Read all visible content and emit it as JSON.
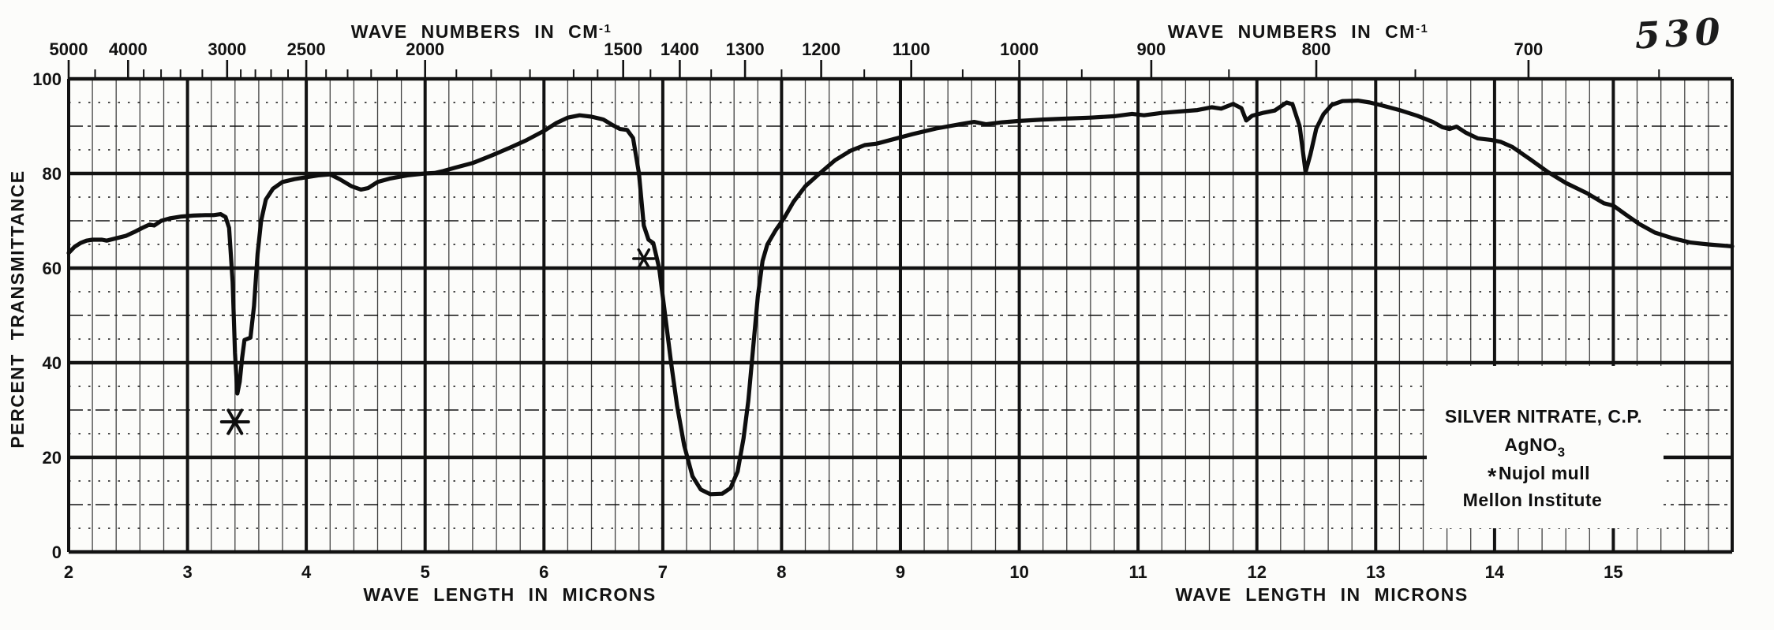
{
  "colors": {
    "ink": "#121212",
    "curve": "#0e0e0e",
    "paper": "#fcfcfa"
  },
  "header": {
    "wavenumber_axis_title": {
      "text": "WAVE NUMBERS IN CM",
      "sup": "-1"
    },
    "handwritten_number": "530"
  },
  "y_axis": {
    "title": "PERCENT TRANSMITTANCE"
  },
  "x_axis": {
    "title": "WAVE LENGTH IN MICRONS"
  },
  "annotation": {
    "line1": "SILVER NITRATE,  C.P.",
    "formula": {
      "text": "AgNO",
      "sub": "3"
    },
    "mull_marker": "*",
    "mull_label": "Nujol mull",
    "institute": "Mellon Institute"
  },
  "chart_data": {
    "type": "line",
    "title": "SILVER NITRATE, C.P. — AgNO3 — Nujol mull — Mellon Institute",
    "xlabel": "WAVE LENGTH IN MICRONS",
    "x2label": "WAVE NUMBERS IN CM-1",
    "ylabel": "PERCENT TRANSMITTANCE",
    "xlim": [
      2,
      16
    ],
    "ylim": [
      0,
      100
    ],
    "grid": "on",
    "x_ticks_microns": [
      2,
      3,
      4,
      5,
      6,
      7,
      8,
      9,
      10,
      11,
      12,
      13,
      14,
      15
    ],
    "y_ticks": [
      0,
      20,
      40,
      60,
      80,
      100
    ],
    "top_axis": {
      "labeled": [
        5000,
        4000,
        3000,
        2500,
        2000,
        1500,
        1400,
        1300,
        1200,
        1100,
        1000,
        900,
        800,
        700
      ],
      "minor": [
        4500,
        3800,
        3600,
        3400,
        3200,
        2900,
        2800,
        2700,
        2600,
        2400,
        2300,
        2200,
        2100,
        1900,
        1800,
        1700,
        1600,
        1550,
        1450,
        1350,
        1250,
        1150,
        1050,
        950,
        850,
        750,
        650
      ]
    },
    "markers": [
      {
        "symbol": "*",
        "mu": 3.4,
        "t": 27.5,
        "size": 17,
        "stroke": 4
      },
      {
        "symbol": "*",
        "mu": 6.84,
        "t": 62.0,
        "size": 13,
        "stroke": 3.5
      }
    ],
    "series": [
      {
        "name": "percent transmittance",
        "points": [
          [
            2.0,
            63.2
          ],
          [
            2.05,
            64.5
          ],
          [
            2.1,
            65.3
          ],
          [
            2.15,
            65.8
          ],
          [
            2.2,
            66.0
          ],
          [
            2.28,
            66.0
          ],
          [
            2.32,
            65.8
          ],
          [
            2.4,
            66.3
          ],
          [
            2.48,
            66.8
          ],
          [
            2.55,
            67.6
          ],
          [
            2.62,
            68.5
          ],
          [
            2.68,
            69.2
          ],
          [
            2.72,
            69.0
          ],
          [
            2.78,
            70.0
          ],
          [
            2.85,
            70.5
          ],
          [
            2.95,
            70.9
          ],
          [
            3.05,
            71.1
          ],
          [
            3.15,
            71.2
          ],
          [
            3.22,
            71.2
          ],
          [
            3.28,
            71.4
          ],
          [
            3.32,
            70.8
          ],
          [
            3.35,
            68.5
          ],
          [
            3.38,
            57.0
          ],
          [
            3.4,
            42.0
          ],
          [
            3.42,
            33.5
          ],
          [
            3.44,
            36.0
          ],
          [
            3.46,
            41.0
          ],
          [
            3.48,
            44.8
          ],
          [
            3.53,
            45.3
          ],
          [
            3.56,
            52.0
          ],
          [
            3.59,
            63.0
          ],
          [
            3.62,
            70.0
          ],
          [
            3.66,
            74.5
          ],
          [
            3.72,
            76.8
          ],
          [
            3.8,
            78.2
          ],
          [
            3.9,
            78.8
          ],
          [
            4.0,
            79.2
          ],
          [
            4.1,
            79.6
          ],
          [
            4.2,
            79.8
          ],
          [
            4.28,
            78.8
          ],
          [
            4.38,
            77.3
          ],
          [
            4.46,
            76.6
          ],
          [
            4.52,
            76.9
          ],
          [
            4.6,
            78.2
          ],
          [
            4.7,
            78.9
          ],
          [
            4.85,
            79.6
          ],
          [
            5.0,
            80.0
          ],
          [
            5.08,
            80.1
          ],
          [
            5.15,
            80.5
          ],
          [
            5.25,
            81.2
          ],
          [
            5.4,
            82.2
          ],
          [
            5.55,
            83.7
          ],
          [
            5.7,
            85.3
          ],
          [
            5.85,
            87.0
          ],
          [
            6.0,
            89.0
          ],
          [
            6.1,
            90.6
          ],
          [
            6.2,
            91.8
          ],
          [
            6.3,
            92.3
          ],
          [
            6.4,
            92.0
          ],
          [
            6.5,
            91.4
          ],
          [
            6.58,
            90.2
          ],
          [
            6.64,
            89.4
          ],
          [
            6.7,
            89.2
          ],
          [
            6.75,
            87.5
          ],
          [
            6.8,
            80.0
          ],
          [
            6.84,
            69.0
          ],
          [
            6.88,
            66.0
          ],
          [
            6.92,
            65.3
          ],
          [
            6.97,
            60.0
          ],
          [
            7.02,
            50.0
          ],
          [
            7.07,
            40.0
          ],
          [
            7.12,
            31.0
          ],
          [
            7.18,
            22.5
          ],
          [
            7.25,
            16.0
          ],
          [
            7.32,
            13.2
          ],
          [
            7.4,
            12.2
          ],
          [
            7.5,
            12.3
          ],
          [
            7.57,
            13.5
          ],
          [
            7.63,
            17.0
          ],
          [
            7.68,
            24.0
          ],
          [
            7.72,
            32.0
          ],
          [
            7.76,
            43.0
          ],
          [
            7.8,
            54.0
          ],
          [
            7.84,
            61.5
          ],
          [
            7.88,
            65.0
          ],
          [
            7.95,
            68.0
          ],
          [
            8.02,
            70.5
          ],
          [
            8.1,
            74.0
          ],
          [
            8.2,
            77.3
          ],
          [
            8.32,
            80.0
          ],
          [
            8.45,
            82.8
          ],
          [
            8.58,
            84.8
          ],
          [
            8.7,
            86.0
          ],
          [
            8.8,
            86.3
          ],
          [
            8.95,
            87.3
          ],
          [
            9.1,
            88.3
          ],
          [
            9.3,
            89.5
          ],
          [
            9.5,
            90.4
          ],
          [
            9.62,
            90.9
          ],
          [
            9.72,
            90.4
          ],
          [
            9.85,
            90.8
          ],
          [
            10.0,
            91.1
          ],
          [
            10.2,
            91.4
          ],
          [
            10.4,
            91.6
          ],
          [
            10.6,
            91.8
          ],
          [
            10.8,
            92.1
          ],
          [
            10.95,
            92.6
          ],
          [
            11.05,
            92.3
          ],
          [
            11.2,
            92.8
          ],
          [
            11.35,
            93.1
          ],
          [
            11.5,
            93.4
          ],
          [
            11.62,
            94.0
          ],
          [
            11.7,
            93.7
          ],
          [
            11.8,
            94.7
          ],
          [
            11.87,
            93.8
          ],
          [
            11.91,
            91.2
          ],
          [
            11.96,
            92.2
          ],
          [
            12.05,
            92.8
          ],
          [
            12.15,
            93.3
          ],
          [
            12.25,
            95.0
          ],
          [
            12.3,
            94.6
          ],
          [
            12.36,
            90.0
          ],
          [
            12.41,
            80.3
          ],
          [
            12.45,
            84.0
          ],
          [
            12.5,
            89.5
          ],
          [
            12.56,
            92.5
          ],
          [
            12.63,
            94.5
          ],
          [
            12.72,
            95.3
          ],
          [
            12.85,
            95.4
          ],
          [
            12.95,
            95.0
          ],
          [
            13.05,
            94.4
          ],
          [
            13.2,
            93.4
          ],
          [
            13.35,
            92.2
          ],
          [
            13.48,
            90.9
          ],
          [
            13.56,
            89.8
          ],
          [
            13.62,
            89.4
          ],
          [
            13.68,
            89.9
          ],
          [
            13.76,
            88.6
          ],
          [
            13.86,
            87.4
          ],
          [
            13.97,
            87.1
          ],
          [
            14.05,
            86.7
          ],
          [
            14.15,
            85.6
          ],
          [
            14.3,
            83.0
          ],
          [
            14.45,
            80.3
          ],
          [
            14.6,
            78.0
          ],
          [
            14.78,
            75.8
          ],
          [
            14.92,
            73.7
          ],
          [
            15.0,
            73.2
          ],
          [
            15.1,
            71.4
          ],
          [
            15.22,
            69.3
          ],
          [
            15.35,
            67.5
          ],
          [
            15.5,
            66.3
          ],
          [
            15.65,
            65.4
          ],
          [
            15.8,
            65.0
          ],
          [
            15.95,
            64.7
          ],
          [
            16.0,
            64.6
          ]
        ]
      }
    ]
  }
}
